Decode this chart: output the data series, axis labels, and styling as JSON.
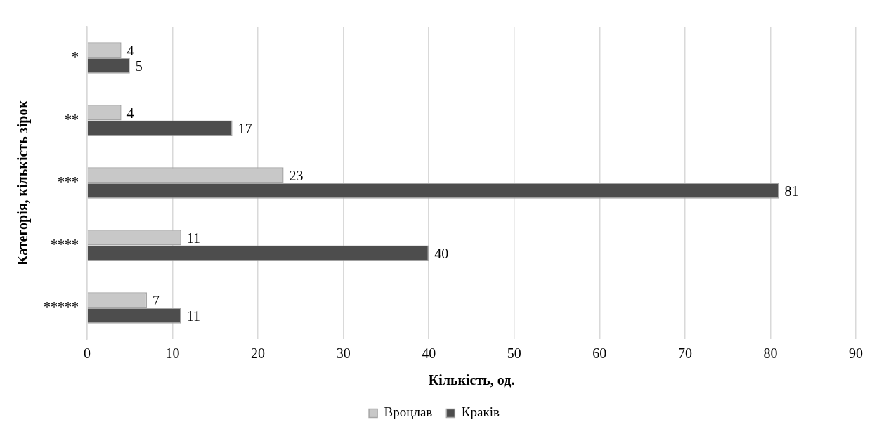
{
  "chart_data": {
    "type": "bar",
    "orientation": "horizontal",
    "xlabel": "Кількість, од.",
    "ylabel": "Категорія, кількість зірок",
    "categories": [
      "*",
      "**",
      "***",
      "****",
      "*****"
    ],
    "series": [
      {
        "name": "Вроцлав",
        "color": "#c8c8c8",
        "values": [
          4,
          4,
          23,
          11,
          7
        ]
      },
      {
        "name": "Краків",
        "color": "#4d4d4d",
        "values": [
          5,
          17,
          81,
          40,
          11
        ]
      }
    ],
    "xlim": [
      0,
      90
    ],
    "xticks": [
      0,
      10,
      20,
      30,
      40,
      50,
      60,
      70,
      80,
      90
    ],
    "grid": "x",
    "legend": "bottom",
    "data_labels": true
  }
}
